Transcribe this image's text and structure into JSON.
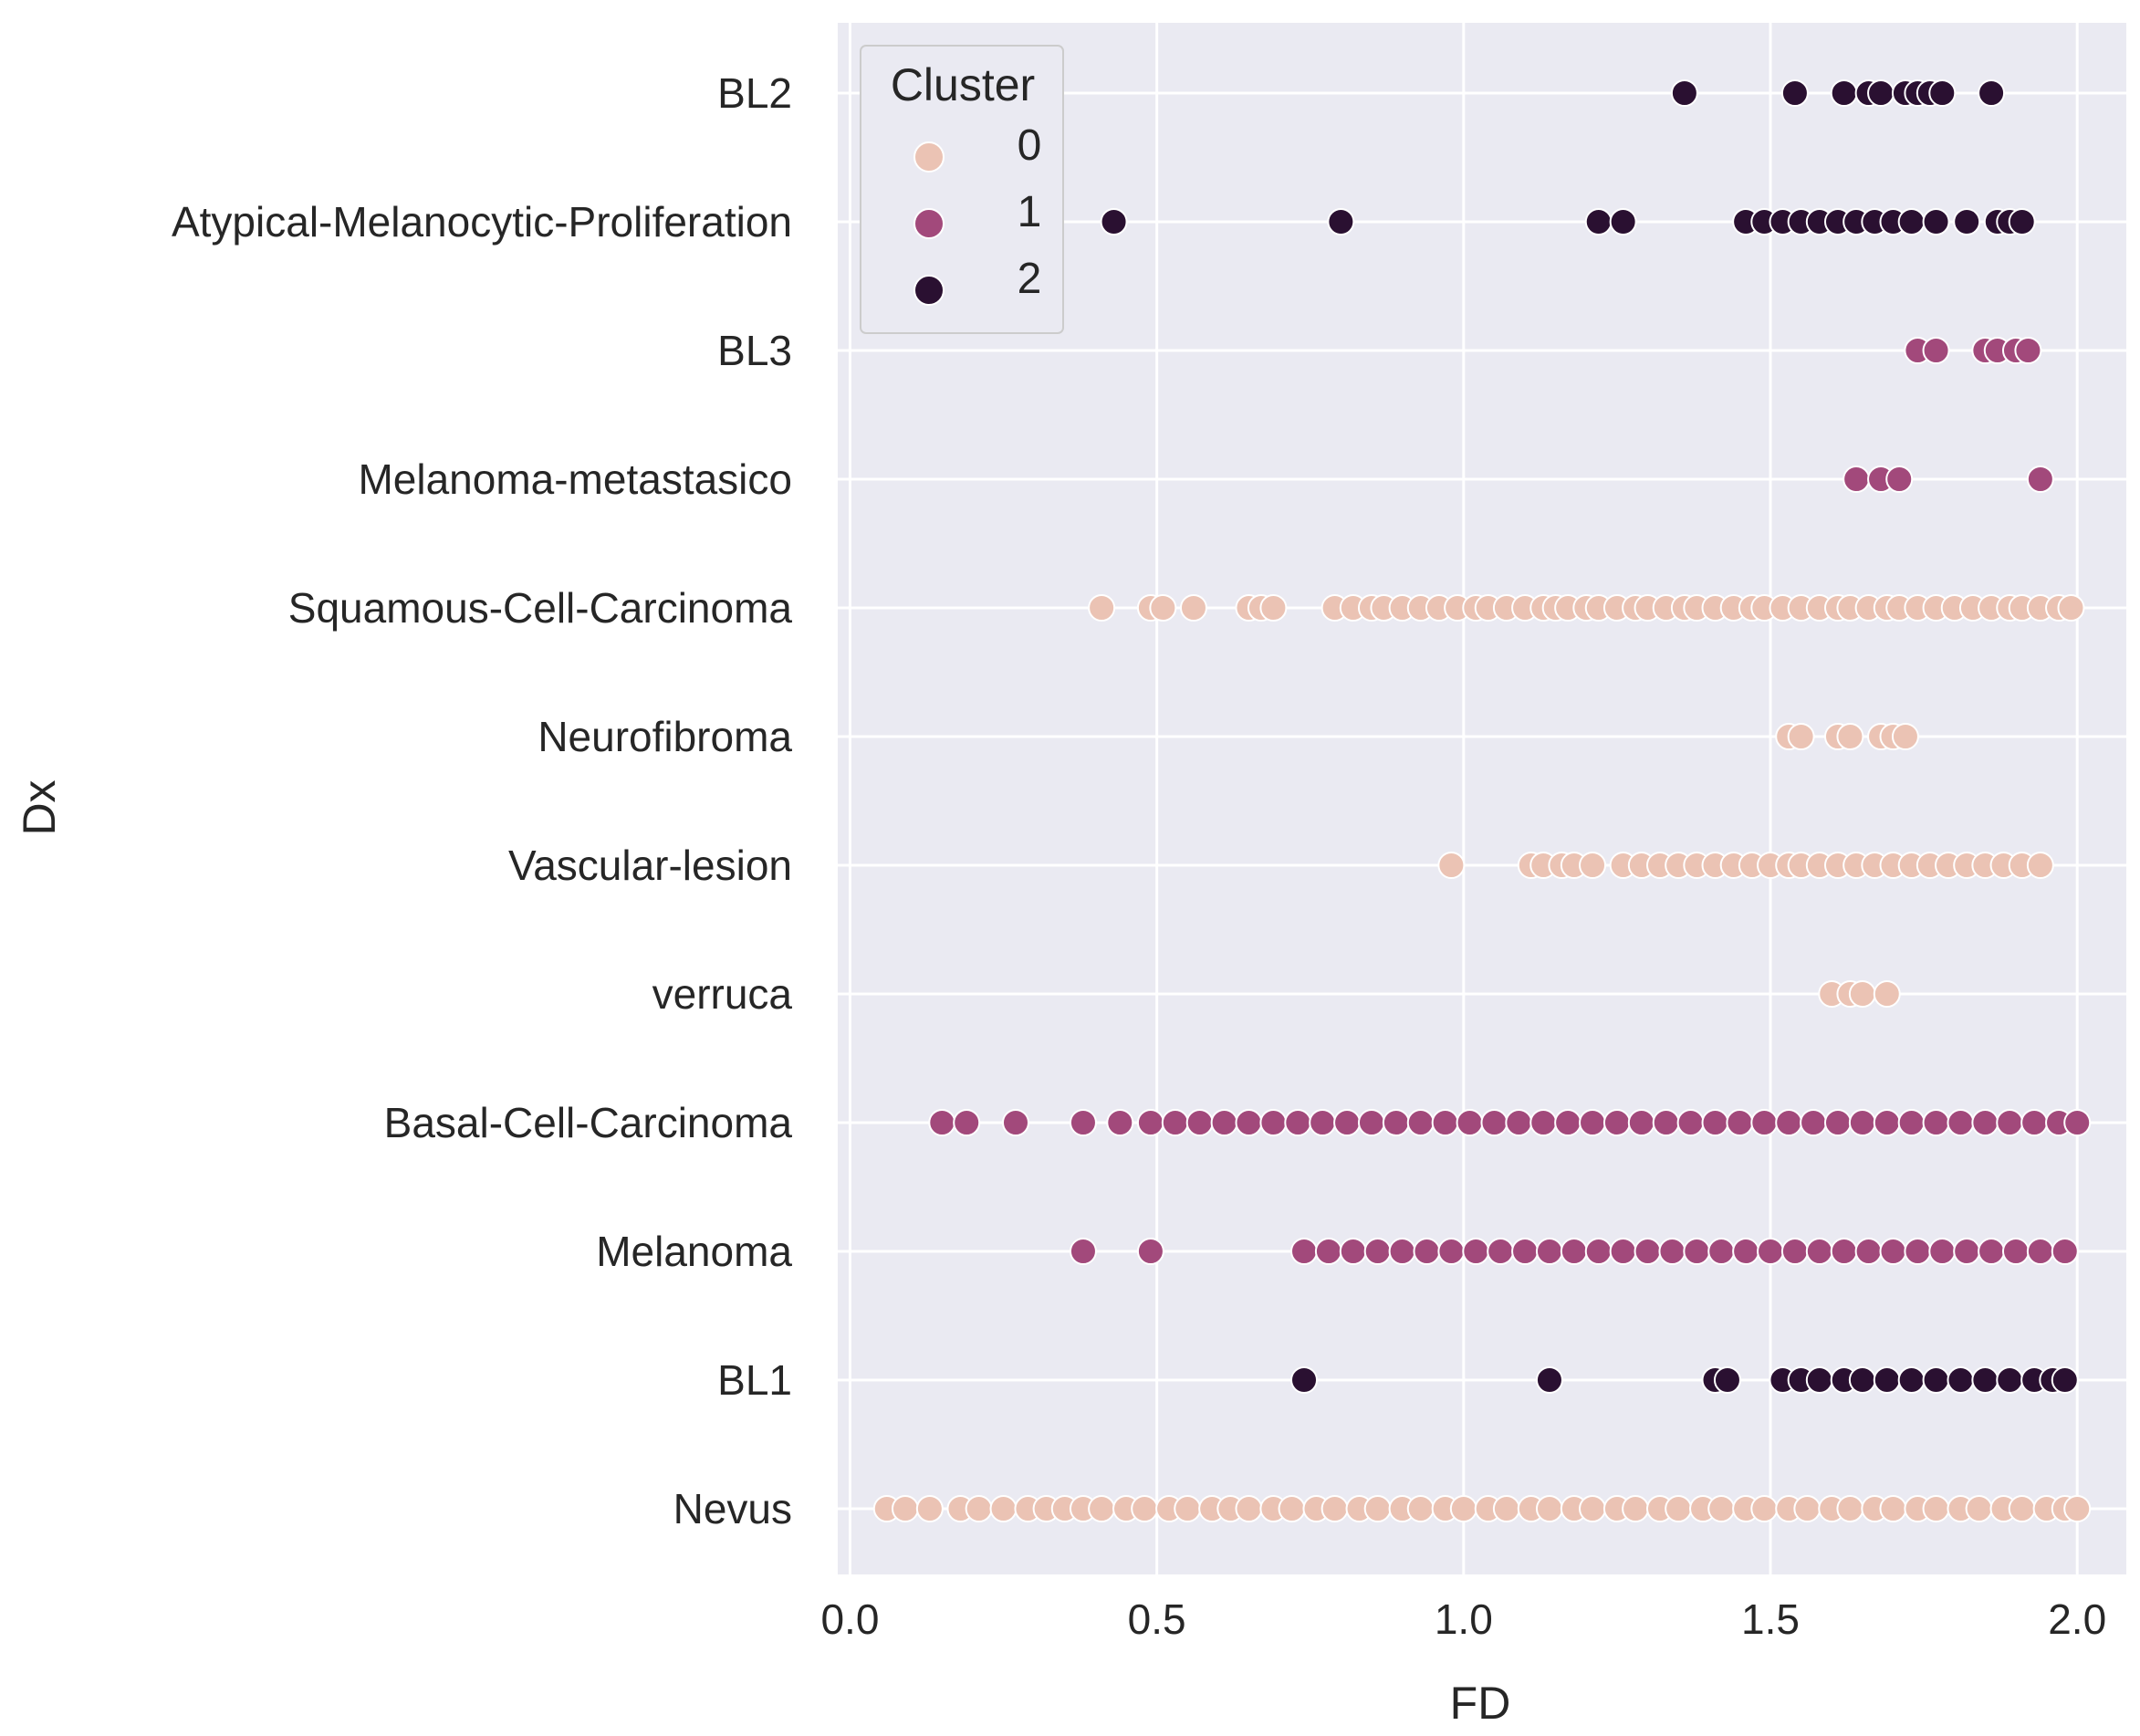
{
  "chart_data": {
    "type": "scatter",
    "title": "",
    "xlabel": "FD",
    "ylabel": "Dx",
    "xlim": [
      -0.02,
      2.08
    ],
    "xticks": [
      0.0,
      0.5,
      1.0,
      1.5,
      2.0
    ],
    "xtick_labels": [
      "0.0",
      "0.5",
      "1.0",
      "1.5",
      "2.0"
    ],
    "grid": true,
    "categories": [
      "BL2",
      "Atypical-Melanocytic-Proliferation",
      "BL3",
      "Melanoma-metastasico",
      "Squamous-Cell-Carcinoma",
      "Neurofibroma",
      "Vascular-lesion",
      "verruca",
      "Basal-Cell-Carcinoma",
      "Melanoma",
      "BL1",
      "Nevus"
    ],
    "legend": {
      "title": "Cluster",
      "position": "top-left",
      "entries": [
        {
          "label": "0",
          "color": "#ebc3b4"
        },
        {
          "label": "1",
          "color": "#a2497b"
        },
        {
          "label": "2",
          "color": "#2a1031"
        }
      ]
    },
    "series": [
      {
        "cluster": 0,
        "color": "#ebc3b4",
        "points": [
          {
            "dx": "Squamous-Cell-Carcinoma",
            "fd": [
              0.41,
              0.49,
              0.51,
              0.56,
              0.65,
              0.67,
              0.69,
              0.79,
              0.82,
              0.85,
              0.87,
              0.9,
              0.93,
              0.96,
              0.99,
              1.02,
              1.04,
              1.07,
              1.1,
              1.13,
              1.15,
              1.17,
              1.2,
              1.22,
              1.25,
              1.28,
              1.3,
              1.33,
              1.36,
              1.38,
              1.41,
              1.44,
              1.47,
              1.49,
              1.52,
              1.55,
              1.58,
              1.61,
              1.63,
              1.66,
              1.69,
              1.71,
              1.74,
              1.77,
              1.8,
              1.83,
              1.86,
              1.89,
              1.91,
              1.94,
              1.97,
              1.99
            ]
          },
          {
            "dx": "Neurofibroma",
            "fd": [
              1.53,
              1.55,
              1.61,
              1.63,
              1.68,
              1.7,
              1.72
            ]
          },
          {
            "dx": "Vascular-lesion",
            "fd": [
              0.98,
              1.11,
              1.13,
              1.16,
              1.18,
              1.21,
              1.26,
              1.29,
              1.32,
              1.35,
              1.38,
              1.41,
              1.44,
              1.47,
              1.5,
              1.53,
              1.55,
              1.58,
              1.61,
              1.64,
              1.67,
              1.7,
              1.73,
              1.76,
              1.79,
              1.82,
              1.85,
              1.88,
              1.91,
              1.94
            ]
          },
          {
            "dx": "verruca",
            "fd": [
              1.6,
              1.63,
              1.65,
              1.69
            ]
          },
          {
            "dx": "Nevus",
            "fd": [
              0.06,
              0.09,
              0.13,
              0.18,
              0.21,
              0.25,
              0.29,
              0.32,
              0.35,
              0.38,
              0.41,
              0.45,
              0.48,
              0.52,
              0.55,
              0.59,
              0.62,
              0.65,
              0.69,
              0.72,
              0.76,
              0.79,
              0.83,
              0.86,
              0.9,
              0.93,
              0.97,
              1.0,
              1.04,
              1.07,
              1.11,
              1.14,
              1.18,
              1.21,
              1.25,
              1.28,
              1.32,
              1.35,
              1.39,
              1.42,
              1.46,
              1.49,
              1.53,
              1.56,
              1.6,
              1.63,
              1.67,
              1.7,
              1.74,
              1.77,
              1.81,
              1.84,
              1.88,
              1.91,
              1.95,
              1.98,
              2.0
            ]
          }
        ]
      },
      {
        "cluster": 1,
        "color": "#a2497b",
        "points": [
          {
            "dx": "BL3",
            "fd": [
              1.74,
              1.77,
              1.85,
              1.87,
              1.9,
              1.92
            ]
          },
          {
            "dx": "Melanoma-metastasico",
            "fd": [
              1.64,
              1.68,
              1.71,
              1.94
            ]
          },
          {
            "dx": "Basal-Cell-Carcinoma",
            "fd": [
              0.15,
              0.19,
              0.27,
              0.38,
              0.44,
              0.49,
              0.53,
              0.57,
              0.61,
              0.65,
              0.69,
              0.73,
              0.77,
              0.81,
              0.85,
              0.89,
              0.93,
              0.97,
              1.01,
              1.05,
              1.09,
              1.13,
              1.17,
              1.21,
              1.25,
              1.29,
              1.33,
              1.37,
              1.41,
              1.45,
              1.49,
              1.53,
              1.57,
              1.61,
              1.65,
              1.69,
              1.73,
              1.77,
              1.81,
              1.85,
              1.89,
              1.93,
              1.97,
              2.0
            ]
          },
          {
            "dx": "Melanoma",
            "fd": [
              0.38,
              0.49,
              0.74,
              0.78,
              0.82,
              0.86,
              0.9,
              0.94,
              0.98,
              1.02,
              1.06,
              1.1,
              1.14,
              1.18,
              1.22,
              1.26,
              1.3,
              1.34,
              1.38,
              1.42,
              1.46,
              1.5,
              1.54,
              1.58,
              1.62,
              1.66,
              1.7,
              1.74,
              1.78,
              1.82,
              1.86,
              1.9,
              1.94,
              1.98
            ]
          }
        ]
      },
      {
        "cluster": 2,
        "color": "#2a1031",
        "points": [
          {
            "dx": "BL2",
            "fd": [
              1.36,
              1.54,
              1.62,
              1.66,
              1.68,
              1.72,
              1.74,
              1.76,
              1.78,
              1.86
            ]
          },
          {
            "dx": "Atypical-Melanocytic-Proliferation",
            "fd": [
              0.43,
              0.8,
              1.22,
              1.26,
              1.46,
              1.49,
              1.52,
              1.55,
              1.58,
              1.61,
              1.64,
              1.67,
              1.7,
              1.73,
              1.77,
              1.82,
              1.87,
              1.89,
              1.91
            ]
          },
          {
            "dx": "BL1",
            "fd": [
              0.74,
              1.14,
              1.41,
              1.43,
              1.52,
              1.55,
              1.58,
              1.62,
              1.65,
              1.69,
              1.73,
              1.77,
              1.81,
              1.85,
              1.89,
              1.93,
              1.96,
              1.98
            ]
          }
        ]
      }
    ]
  }
}
